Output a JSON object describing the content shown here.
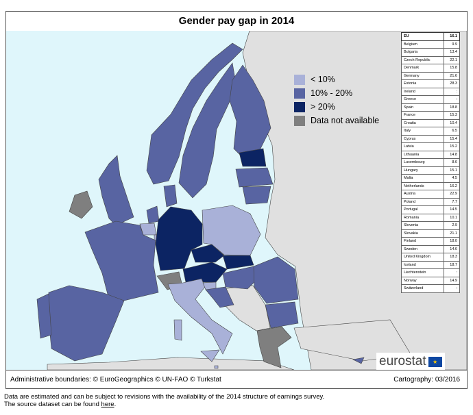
{
  "title": "Gender pay gap in 2014",
  "legend": [
    {
      "label": "< 10%",
      "color": "#a9b1d8"
    },
    {
      "label": "10% - 20%",
      "color": "#5864a2"
    },
    {
      "label": "> 20%",
      "color": "#0c2463"
    },
    {
      "label": "Data not available",
      "color": "#7f7f7f"
    }
  ],
  "table": [
    {
      "country": "EU",
      "value": "16.1"
    },
    {
      "country": "Belgium",
      "value": "9.9"
    },
    {
      "country": "Bulgaria",
      "value": "13.4"
    },
    {
      "country": "Czech Republic",
      "value": "22.1"
    },
    {
      "country": "Denmark",
      "value": "15.8"
    },
    {
      "country": "Germany",
      "value": "21.6"
    },
    {
      "country": "Estonia",
      "value": "28.3"
    },
    {
      "country": "Ireland",
      "value": ":"
    },
    {
      "country": "Greece",
      "value": ":"
    },
    {
      "country": "Spain",
      "value": "18.8"
    },
    {
      "country": "France",
      "value": "15.3"
    },
    {
      "country": "Croatia",
      "value": "10.4"
    },
    {
      "country": "Italy",
      "value": "6.5"
    },
    {
      "country": "Cyprus",
      "value": "15.4"
    },
    {
      "country": "Latvia",
      "value": "15.2"
    },
    {
      "country": "Lithuania",
      "value": "14.8"
    },
    {
      "country": "Luxembourg",
      "value": "8.6"
    },
    {
      "country": "Hungary",
      "value": "15.1"
    },
    {
      "country": "Malta",
      "value": "4.5"
    },
    {
      "country": "Netherlands",
      "value": "16.2"
    },
    {
      "country": "Austria",
      "value": "22.9"
    },
    {
      "country": "Poland",
      "value": "7.7"
    },
    {
      "country": "Portugal",
      "value": "14.5"
    },
    {
      "country": "Romania",
      "value": "10.1"
    },
    {
      "country": "Slovenia",
      "value": "2.9"
    },
    {
      "country": "Slovakia",
      "value": "21.1"
    },
    {
      "country": "Finland",
      "value": "18.0"
    },
    {
      "country": "Sweden",
      "value": "14.6"
    },
    {
      "country": "United Kingdom",
      "value": "18.3"
    },
    {
      "country": "Iceland",
      "value": "18.7"
    },
    {
      "country": "Liechtenstein",
      "value": ":"
    },
    {
      "country": "Norway",
      "value": "14.9"
    },
    {
      "country": "Switzerland",
      "value": ":"
    }
  ],
  "logo": "eurostat",
  "footer": {
    "left": "Administrative boundaries: © EuroGeographics © UN-FAO © Turkstat",
    "right": "Cartography: 03/2016"
  },
  "caption": {
    "line1": "Data are estimated and can be subject to revisions with the availability of the 2014 structure of earnings survey.",
    "line2_prefix": "The source dataset can be found ",
    "link": "here",
    "line2_suffix": "."
  },
  "colors": {
    "sea": "#dff6fb",
    "land": "#e0e0e0"
  }
}
